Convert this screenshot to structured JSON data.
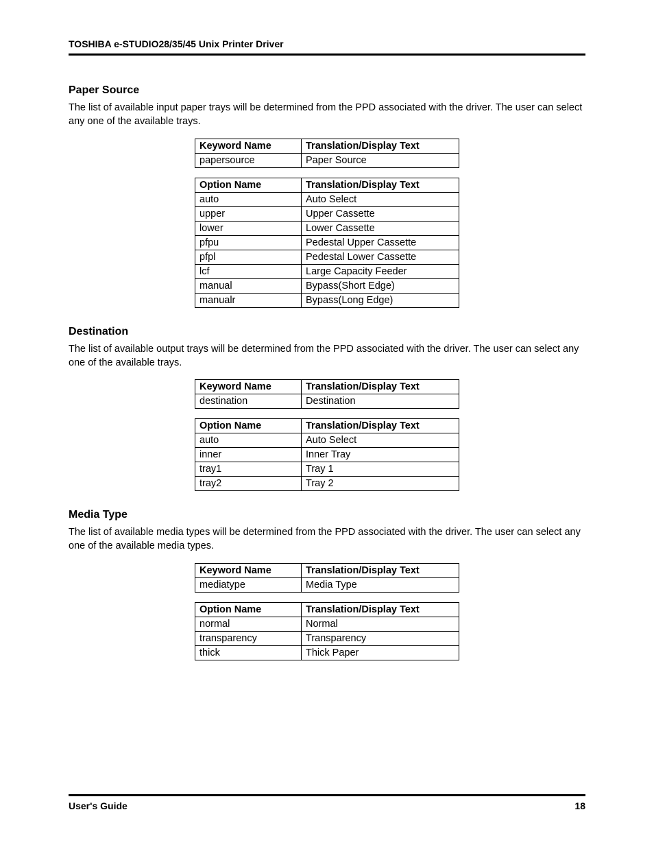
{
  "header": {
    "title": "TOSHIBA e-STUDIO28/35/45 Unix Printer Driver"
  },
  "footer": {
    "left": "User's Guide",
    "pageNum": "18"
  },
  "sections": [
    {
      "heading": "Paper Source",
      "desc": "The list of available input paper trays will be determined from the PPD associated with the driver. The user can select any one of the available trays.",
      "kwTable": {
        "h1": "Keyword Name",
        "h2": "Translation/Display Text",
        "rows": [
          {
            "c1": "papersource",
            "c2": "Paper Source"
          }
        ]
      },
      "optTable": {
        "h1": "Option Name",
        "h2": "Translation/Display Text",
        "rows": [
          {
            "c1": "auto",
            "c2": "Auto Select"
          },
          {
            "c1": "upper",
            "c2": "Upper Cassette"
          },
          {
            "c1": "lower",
            "c2": "Lower Cassette"
          },
          {
            "c1": "pfpu",
            "c2": "Pedestal Upper Cassette"
          },
          {
            "c1": "pfpl",
            "c2": "Pedestal Lower Cassette"
          },
          {
            "c1": "lcf",
            "c2": "Large Capacity Feeder"
          },
          {
            "c1": "manual",
            "c2": "Bypass(Short Edge)"
          },
          {
            "c1": "manualr",
            "c2": "Bypass(Long Edge)"
          }
        ]
      }
    },
    {
      "heading": "Destination",
      "desc": "The list of available output trays will be determined from the PPD associated with the driver. The user can select any one of the available trays.",
      "kwTable": {
        "h1": "Keyword Name",
        "h2": "Translation/Display Text",
        "rows": [
          {
            "c1": "destination",
            "c2": "Destination"
          }
        ]
      },
      "optTable": {
        "h1": "Option Name",
        "h2": "Translation/Display Text",
        "rows": [
          {
            "c1": "auto",
            "c2": "Auto Select"
          },
          {
            "c1": "inner",
            "c2": "Inner Tray"
          },
          {
            "c1": "tray1",
            "c2": "Tray 1"
          },
          {
            "c1": "tray2",
            "c2": "Tray 2"
          }
        ]
      }
    },
    {
      "heading": "Media Type",
      "desc": "The list of available media types will be determined from the PPD associated with the driver. The user can select any one of the available media types.",
      "kwTable": {
        "h1": "Keyword Name",
        "h2": "Translation/Display Text",
        "rows": [
          {
            "c1": "mediatype",
            "c2": "Media Type"
          }
        ]
      },
      "optTable": {
        "h1": "Option Name",
        "h2": "Translation/Display Text",
        "rows": [
          {
            "c1": "normal",
            "c2": "Normal"
          },
          {
            "c1": "transparency",
            "c2": "Transparency"
          },
          {
            "c1": "thick",
            "c2": "Thick Paper"
          }
        ]
      }
    }
  ]
}
